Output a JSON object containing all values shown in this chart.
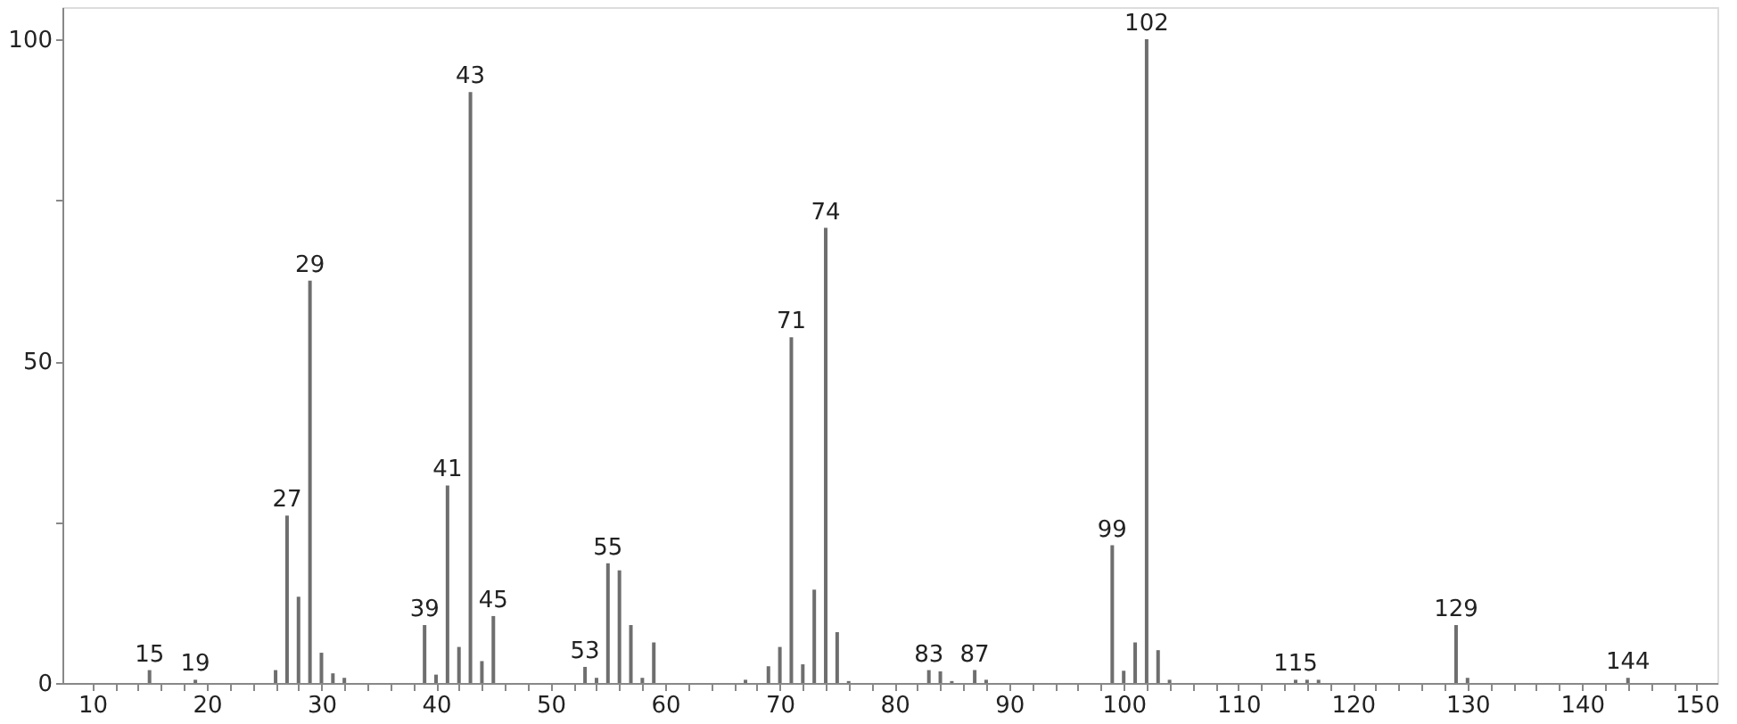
{
  "chart_data": {
    "type": "bar",
    "color": "#6e6e6e",
    "x": [
      15,
      19,
      26,
      27,
      28,
      29,
      30,
      31,
      32,
      39,
      40,
      41,
      42,
      43,
      44,
      45,
      53,
      54,
      55,
      56,
      57,
      58,
      59,
      67,
      69,
      70,
      71,
      72,
      73,
      74,
      75,
      76,
      83,
      84,
      85,
      87,
      88,
      99,
      100,
      101,
      102,
      103,
      104,
      115,
      116,
      117,
      129,
      130,
      144
    ],
    "values": [
      2,
      0.5,
      2,
      26,
      13.4,
      62.5,
      4.7,
      1.5,
      0.8,
      9,
      1.3,
      30.7,
      5.6,
      91.8,
      3.4,
      10.4,
      2.5,
      0.8,
      18.6,
      17.5,
      9,
      0.8,
      6.3,
      0.5,
      2.6,
      5.6,
      53.7,
      2.9,
      14.5,
      70.7,
      7.9,
      0.3,
      2,
      1.8,
      0.3,
      2,
      0.5,
      21.4,
      1.9,
      6.3,
      100,
      5.1,
      0.5,
      0.5,
      0.5,
      0.5,
      9,
      0.8,
      0.8
    ],
    "xlim": [
      7.4,
      151.8
    ],
    "xticks": [
      10,
      {
        "value": 12,
        "label": null
      },
      {
        "value": 14,
        "label": null
      },
      {
        "value": 16,
        "label": null
      },
      {
        "value": 18,
        "label": null
      },
      20,
      {
        "value": 22,
        "label": null
      },
      {
        "value": 24,
        "label": null
      },
      {
        "value": 26,
        "label": null
      },
      {
        "value": 28,
        "label": null
      },
      30,
      {
        "value": 32,
        "label": null
      },
      {
        "value": 34,
        "label": null
      },
      {
        "value": 36,
        "label": null
      },
      {
        "value": 38,
        "label": null
      },
      40,
      {
        "value": 42,
        "label": null
      },
      {
        "value": 44,
        "label": null
      },
      {
        "value": 46,
        "label": null
      },
      {
        "value": 48,
        "label": null
      },
      50,
      {
        "value": 52,
        "label": null
      },
      {
        "value": 54,
        "label": null
      },
      {
        "value": 56,
        "label": null
      },
      {
        "value": 58,
        "label": null
      },
      60,
      {
        "value": 62,
        "label": null
      },
      {
        "value": 64,
        "label": null
      },
      {
        "value": 66,
        "label": null
      },
      {
        "value": 68,
        "label": null
      },
      70,
      {
        "value": 72,
        "label": null
      },
      {
        "value": 74,
        "label": null
      },
      {
        "value": 76,
        "label": null
      },
      {
        "value": 78,
        "label": null
      },
      80,
      {
        "value": 82,
        "label": null
      },
      {
        "value": 84,
        "label": null
      },
      {
        "value": 86,
        "label": null
      },
      {
        "value": 88,
        "label": null
      },
      90,
      {
        "value": 92,
        "label": null
      },
      {
        "value": 94,
        "label": null
      },
      {
        "value": 96,
        "label": null
      },
      {
        "value": 98,
        "label": null
      },
      100,
      {
        "value": 102,
        "label": null
      },
      {
        "value": 104,
        "label": null
      },
      {
        "value": 106,
        "label": null
      },
      {
        "value": 108,
        "label": null
      },
      110,
      {
        "value": 112,
        "label": null
      },
      {
        "value": 114,
        "label": null
      },
      {
        "value": 116,
        "label": null
      },
      {
        "value": 118,
        "label": null
      },
      120,
      {
        "value": 122,
        "label": null
      },
      {
        "value": 124,
        "label": null
      },
      {
        "value": 126,
        "label": null
      },
      {
        "value": 128,
        "label": null
      },
      130,
      {
        "value": 132,
        "label": null
      },
      {
        "value": 134,
        "label": null
      },
      {
        "value": 136,
        "label": null
      },
      {
        "value": 138,
        "label": null
      },
      140,
      {
        "value": 142,
        "label": null
      },
      {
        "value": 144,
        "label": null
      },
      {
        "value": 146,
        "label": null
      },
      {
        "value": 148,
        "label": null
      },
      150
    ],
    "ylim": [
      0,
      105
    ],
    "yticks": [
      0,
      {
        "value": 25,
        "label": null
      },
      50,
      {
        "value": 75,
        "label": null
      },
      100
    ],
    "grid": false,
    "annotations": [
      {
        "text": "15",
        "x": 15,
        "y": 2
      },
      {
        "text": "19",
        "x": 19,
        "y": 0.5
      },
      {
        "text": "27",
        "x": 27,
        "y": 26
      },
      {
        "text": "29",
        "x": 29,
        "y": 62.5
      },
      {
        "text": "39",
        "x": 39,
        "y": 9
      },
      {
        "text": "41",
        "x": 41,
        "y": 30.7
      },
      {
        "text": "43",
        "x": 43,
        "y": 91.8
      },
      {
        "text": "45",
        "x": 45,
        "y": 10.4
      },
      {
        "text": "53",
        "x": 53,
        "y": 2.5
      },
      {
        "text": "55",
        "x": 55,
        "y": 18.6
      },
      {
        "text": "71",
        "x": 71,
        "y": 53.7
      },
      {
        "text": "74",
        "x": 74,
        "y": 70.7
      },
      {
        "text": "83",
        "x": 83,
        "y": 2
      },
      {
        "text": "87",
        "x": 87,
        "y": 2
      },
      {
        "text": "99",
        "x": 99,
        "y": 21.4
      },
      {
        "text": "102",
        "x": 102,
        "y": 100
      },
      {
        "text": "115",
        "x": 115,
        "y": 0.5
      },
      {
        "text": "129",
        "x": 129,
        "y": 9
      },
      {
        "text": "144",
        "x": 144,
        "y": 0.8
      }
    ]
  }
}
